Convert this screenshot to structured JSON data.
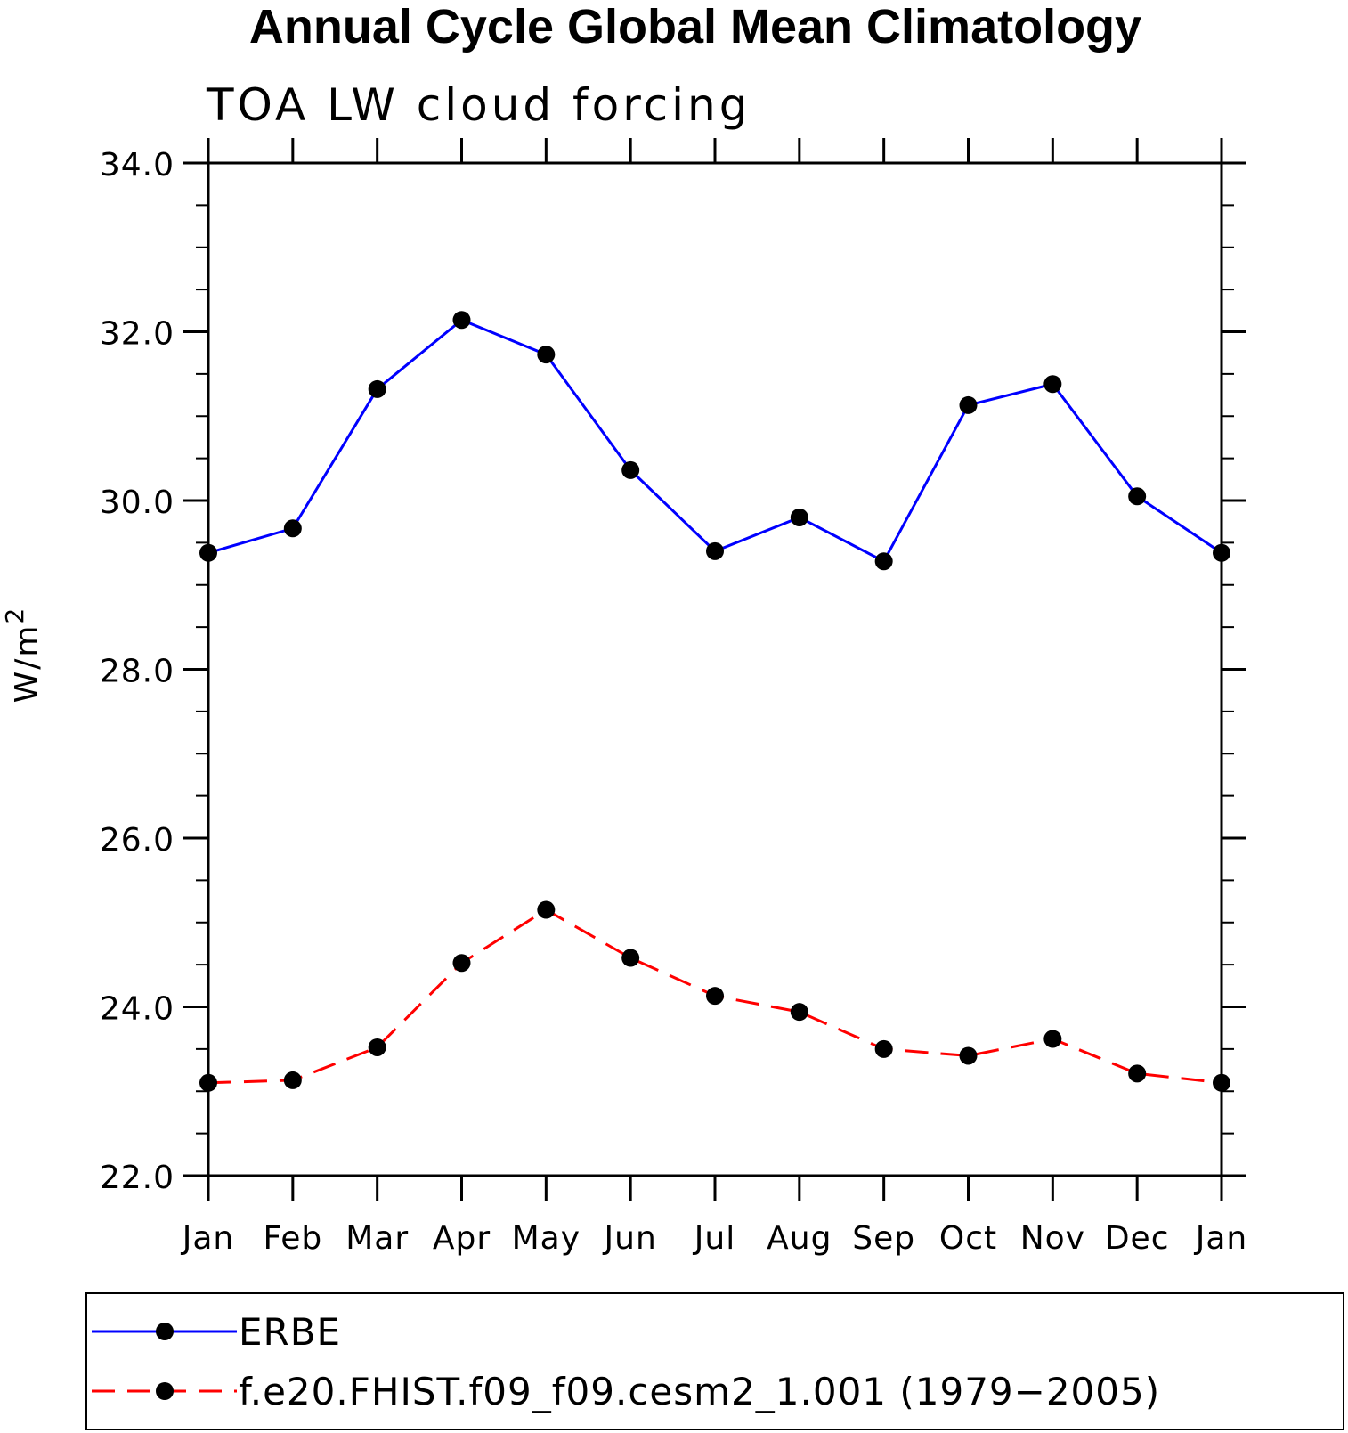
{
  "chart_data": {
    "type": "line",
    "title": "Annual Cycle Global Mean Climatology",
    "subtitle": "TOA LW cloud forcing",
    "ylabel": "W/m",
    "ylabel_superscript": "2",
    "xlabel": "",
    "categories": [
      "Jan",
      "Feb",
      "Mar",
      "Apr",
      "May",
      "Jun",
      "Jul",
      "Aug",
      "Sep",
      "Oct",
      "Nov",
      "Dec",
      "Jan"
    ],
    "ylim": [
      22.0,
      34.0
    ],
    "yticks": [
      "22.0",
      "24.0",
      "26.0",
      "28.0",
      "30.0",
      "32.0",
      "34.0"
    ],
    "grid": false,
    "legend_position": "bottom",
    "series": [
      {
        "name": "ERBE",
        "color": "#0000ff",
        "dash": "solid",
        "marker": "filled-circle",
        "values": [
          29.38,
          29.67,
          31.32,
          32.14,
          31.73,
          30.36,
          29.4,
          29.8,
          29.28,
          31.13,
          31.38,
          30.05,
          29.38
        ]
      },
      {
        "name": "f.e20.FHIST.f09_f09.cesm2_1.001 (1979−2005)",
        "color": "#ff0000",
        "dash": "dashed",
        "marker": "filled-circle",
        "values": [
          23.1,
          23.13,
          23.52,
          24.52,
          25.15,
          24.58,
          24.13,
          23.94,
          23.5,
          23.42,
          23.62,
          23.21,
          23.1
        ]
      }
    ]
  }
}
